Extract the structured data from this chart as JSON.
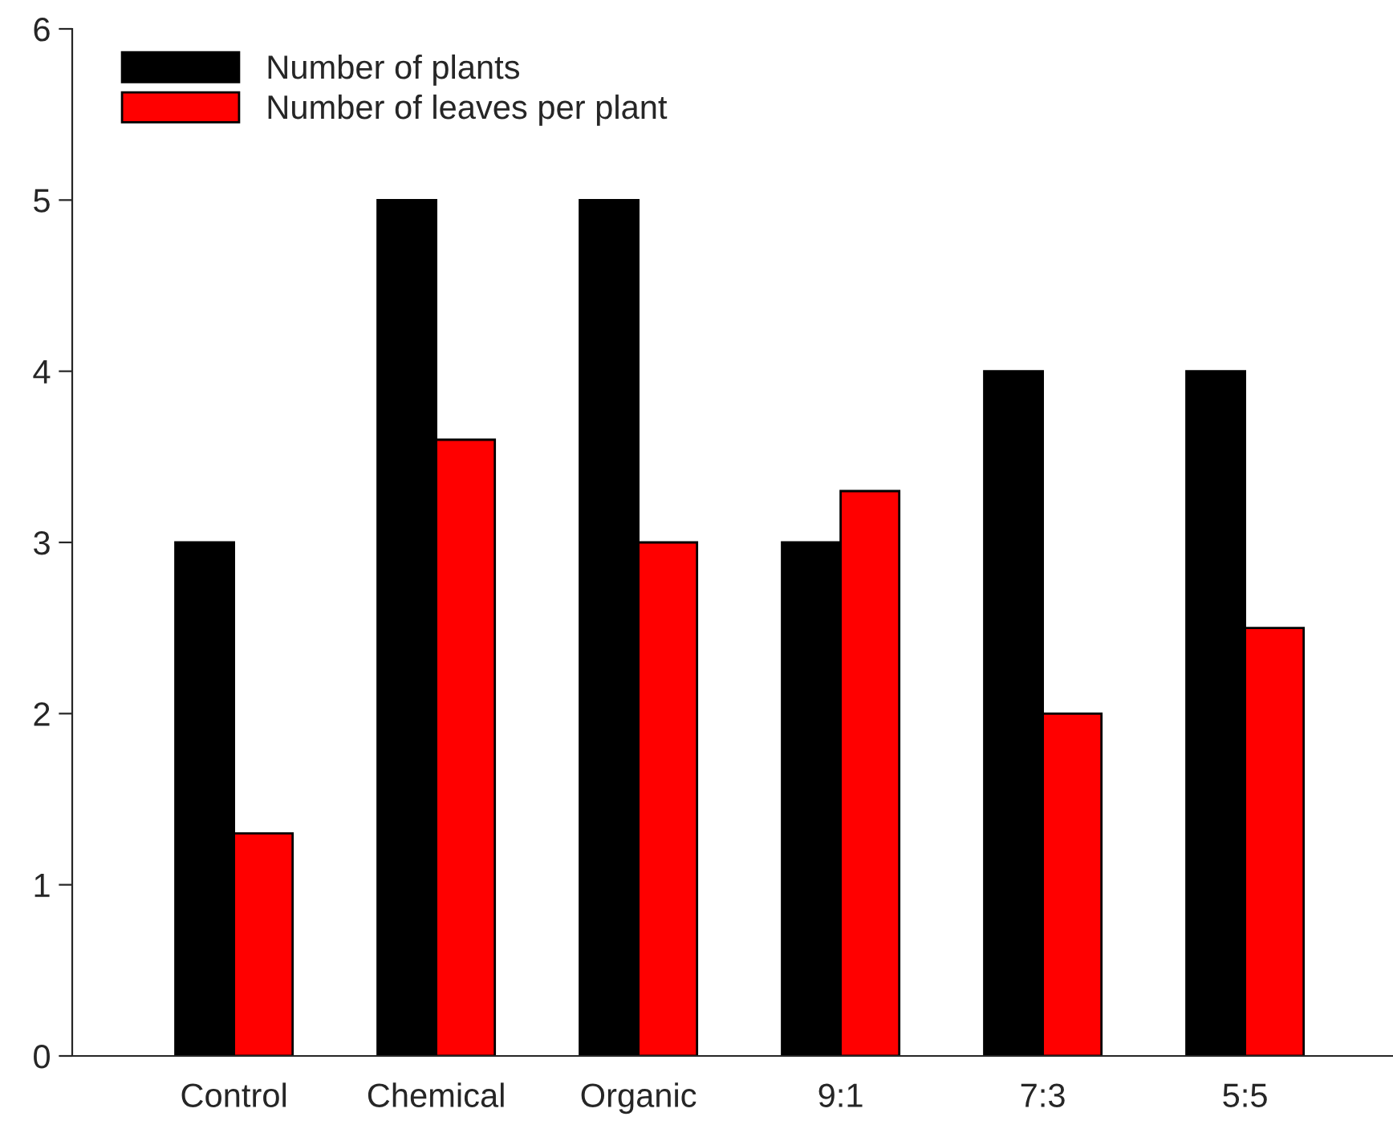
{
  "chart_data": {
    "type": "bar",
    "categories": [
      "Control",
      "Chemical",
      "Organic",
      "9:1",
      "7:3",
      "5:5"
    ],
    "series": [
      {
        "name": "Number of plants",
        "color": "#000000",
        "values": [
          3,
          5,
          5,
          3,
          4,
          4
        ]
      },
      {
        "name": "Number of leaves per plant",
        "color": "#ff0000",
        "values": [
          1.3,
          3.6,
          3.0,
          3.3,
          2.0,
          2.5
        ]
      }
    ],
    "ylim": [
      0,
      6
    ],
    "yticks": [
      0,
      1,
      2,
      3,
      4,
      5,
      6
    ],
    "grid": false,
    "legend": "top left"
  }
}
